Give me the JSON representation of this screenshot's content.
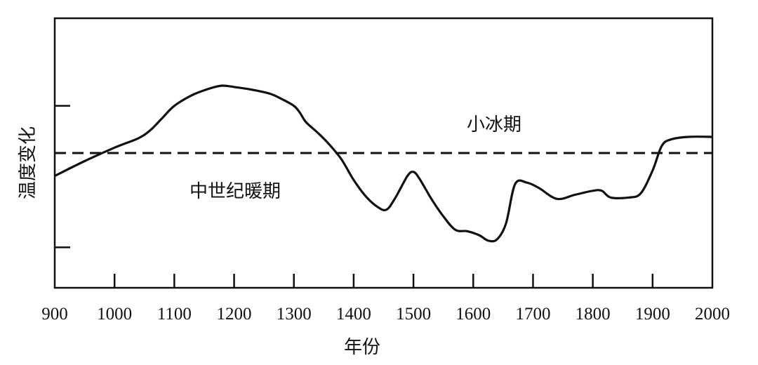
{
  "chart_data": {
    "type": "line",
    "xlabel": "年份",
    "ylabel": "温度变化",
    "xlim": [
      900,
      2000
    ],
    "ylim": [
      -1,
      1
    ],
    "x_ticks": [
      900,
      1000,
      1100,
      1200,
      1300,
      1400,
      1500,
      1600,
      1700,
      1800,
      1900,
      2000
    ],
    "y_ticks": [
      -0.7,
      0.35
    ],
    "grid": false,
    "reference_line": {
      "y": 0.0,
      "style": "dashed"
    },
    "annotations": [
      {
        "text": "小冰期",
        "x": 1680,
        "y": 0.25
      },
      {
        "text": "中世纪暖期",
        "x": 1010,
        "y": -0.35
      }
    ],
    "series": [
      {
        "x": [
          900,
          950,
          1000,
          1040,
          1060,
          1080,
          1100,
          1130,
          1160,
          1180,
          1200,
          1230,
          1260,
          1280,
          1300,
          1310,
          1320,
          1340,
          1360,
          1380,
          1400,
          1420,
          1440,
          1455,
          1470,
          1490,
          1500,
          1510,
          1530,
          1550,
          1570,
          1590,
          1610,
          1625,
          1640,
          1655,
          1670,
          1690,
          1710,
          1740,
          1770,
          1800,
          1815,
          1830,
          1860,
          1880,
          1900,
          1915,
          1930,
          1960,
          2000
        ],
        "values": [
          -0.17,
          -0.06,
          0.04,
          0.11,
          0.17,
          0.26,
          0.35,
          0.43,
          0.48,
          0.5,
          0.49,
          0.47,
          0.44,
          0.4,
          0.35,
          0.3,
          0.23,
          0.15,
          0.06,
          -0.05,
          -0.2,
          -0.32,
          -0.4,
          -0.42,
          -0.33,
          -0.17,
          -0.14,
          -0.19,
          -0.34,
          -0.47,
          -0.57,
          -0.58,
          -0.61,
          -0.65,
          -0.64,
          -0.52,
          -0.23,
          -0.22,
          -0.26,
          -0.34,
          -0.31,
          -0.28,
          -0.28,
          -0.33,
          -0.33,
          -0.3,
          -0.13,
          0.05,
          0.1,
          0.12,
          0.12
        ]
      }
    ]
  }
}
